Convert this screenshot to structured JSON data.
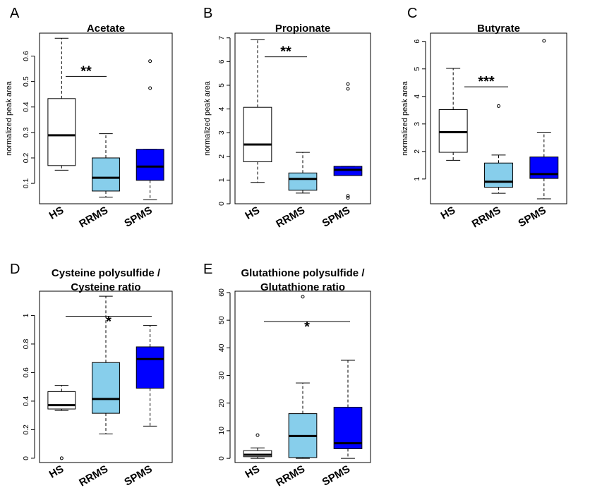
{
  "chart_data": [
    {
      "panel": "A",
      "type": "box",
      "title": [
        "Acetate"
      ],
      "ylabel": "normalized peak area",
      "ylim": [
        0.02,
        0.69
      ],
      "yticks": [
        0.1,
        0.2,
        0.3,
        0.4,
        0.5,
        0.6
      ],
      "categories": [
        "HS",
        "RRMS",
        "SPMS"
      ],
      "colors": [
        "#ffffff",
        "#87ceeb",
        "#0000ff"
      ],
      "boxes": [
        {
          "whisker_low": 0.152,
          "q1": 0.17,
          "median": 0.289,
          "q3": 0.433,
          "whisker_high": 0.67,
          "outliers": []
        },
        {
          "whisker_low": 0.046,
          "q1": 0.07,
          "median": 0.122,
          "q3": 0.2,
          "whisker_high": 0.295,
          "outliers": []
        },
        {
          "whisker_low": 0.036,
          "q1": 0.112,
          "median": 0.166,
          "q3": 0.234,
          "whisker_high": 0.234,
          "outliers": [
            0.474,
            0.58
          ]
        }
      ],
      "significance": {
        "from": "HS",
        "to": "RRMS",
        "y": 0.52,
        "label": "**",
        "style": "short"
      }
    },
    {
      "panel": "B",
      "type": "box",
      "title": [
        "Propionate"
      ],
      "ylabel": "normalized peak area",
      "ylim": [
        0,
        7.2
      ],
      "yticks": [
        0,
        1,
        2,
        3,
        4,
        5,
        6,
        7
      ],
      "categories": [
        "HS",
        "RRMS",
        "SPMS"
      ],
      "colors": [
        "#ffffff",
        "#87ceeb",
        "#0000ff"
      ],
      "boxes": [
        {
          "whisker_low": 0.9,
          "q1": 1.77,
          "median": 2.5,
          "q3": 4.07,
          "whisker_high": 6.92,
          "outliers": []
        },
        {
          "whisker_low": 0.45,
          "q1": 0.57,
          "median": 1.05,
          "q3": 1.3,
          "whisker_high": 2.17,
          "outliers": []
        },
        {
          "whisker_low": 1.19,
          "q1": 1.19,
          "median": 1.43,
          "q3": 1.58,
          "whisker_high": 1.58,
          "outliers": [
            0.25,
            0.33,
            4.85,
            5.05
          ]
        }
      ],
      "significance": {
        "from": "HS",
        "to": "RRMS",
        "y": 6.2,
        "label": "**",
        "style": "short"
      }
    },
    {
      "panel": "C",
      "type": "box",
      "title": [
        "Butyrate"
      ],
      "ylabel": "normalized peak area",
      "ylim": [
        0.1,
        6.3
      ],
      "yticks": [
        1,
        2,
        3,
        4,
        5,
        6
      ],
      "categories": [
        "HS",
        "RRMS",
        "SPMS"
      ],
      "colors": [
        "#ffffff",
        "#87ceeb",
        "#0000ff"
      ],
      "boxes": [
        {
          "whisker_low": 1.68,
          "q1": 1.97,
          "median": 2.7,
          "q3": 3.52,
          "whisker_high": 5.02,
          "outliers": []
        },
        {
          "whisker_low": 0.48,
          "q1": 0.7,
          "median": 0.9,
          "q3": 1.58,
          "whisker_high": 1.87,
          "outliers": [
            3.65
          ]
        },
        {
          "whisker_low": 0.28,
          "q1": 1.02,
          "median": 1.18,
          "q3": 1.8,
          "whisker_high": 2.7,
          "outliers": [
            6.02
          ]
        }
      ],
      "significance": {
        "from": "HS",
        "to": "RRMS",
        "y": 4.35,
        "label": "***",
        "style": "short"
      }
    },
    {
      "panel": "D",
      "type": "box",
      "title": [
        "Cysteine polysulfide /",
        "Cysteine ratio"
      ],
      "ylabel": "",
      "ylim": [
        -0.03,
        1.17
      ],
      "yticks": [
        0.0,
        0.2,
        0.4,
        0.6,
        0.8,
        1.0
      ],
      "categories": [
        "HS",
        "RRMS",
        "SPMS"
      ],
      "colors": [
        "#ffffff",
        "#87ceeb",
        "#0000ff"
      ],
      "boxes": [
        {
          "whisker_low": 0.335,
          "q1": 0.345,
          "median": 0.372,
          "q3": 0.467,
          "whisker_high": 0.51,
          "outliers": [
            0.0
          ]
        },
        {
          "whisker_low": 0.17,
          "q1": 0.315,
          "median": 0.415,
          "q3": 0.67,
          "whisker_high": 1.135,
          "outliers": []
        },
        {
          "whisker_low": 0.225,
          "q1": 0.49,
          "median": 0.695,
          "q3": 0.78,
          "whisker_high": 0.93,
          "outliers": []
        }
      ],
      "significance": {
        "from": "HS",
        "to": "SPMS",
        "y": 0.995,
        "label": "*",
        "style": "wide"
      }
    },
    {
      "panel": "E",
      "type": "box",
      "title": [
        "Glutathione polysulfide /",
        "Glutathione ratio"
      ],
      "ylabel": "",
      "ylim": [
        -1.5,
        60.5
      ],
      "yticks": [
        0,
        10,
        20,
        30,
        40,
        50,
        60
      ],
      "categories": [
        "HS",
        "RRMS",
        "SPMS"
      ],
      "colors": [
        "#ffffff",
        "#87ceeb",
        "#0000ff"
      ],
      "boxes": [
        {
          "whisker_low": 0.0,
          "q1": 0.6,
          "median": 1.3,
          "q3": 2.8,
          "whisker_high": 3.8,
          "outliers": [
            8.4
          ]
        },
        {
          "whisker_low": 0.0,
          "q1": 0.3,
          "median": 8.1,
          "q3": 16.2,
          "whisker_high": 27.3,
          "outliers": [
            58.5
          ]
        },
        {
          "whisker_low": 0.0,
          "q1": 3.5,
          "median": 5.5,
          "q3": 18.5,
          "whisker_high": 35.5,
          "outliers": []
        }
      ],
      "significance": {
        "from": "HS",
        "to": "SPMS",
        "y": 49.5,
        "label": "*",
        "style": "wide"
      }
    }
  ]
}
